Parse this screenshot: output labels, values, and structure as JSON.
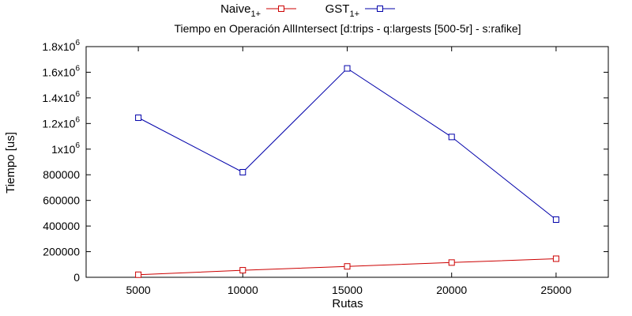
{
  "chart_data": {
    "type": "line",
    "title": "Tiempo en Operación AllIntersect [d:trips - q:largests [500-5r] - s:rafike]",
    "xlabel": "Rutas",
    "ylabel": "Tiempo [us]",
    "x": [
      5000,
      10000,
      15000,
      20000,
      25000
    ],
    "xticks": [
      5000,
      10000,
      15000,
      20000,
      25000
    ],
    "xtick_labels": [
      "5000",
      "10000",
      "15000",
      "20000",
      "25000"
    ],
    "xlim": [
      2500,
      27500
    ],
    "ylim": [
      0,
      1800000
    ],
    "yticks": [
      {
        "value": 0,
        "base": "0",
        "exp": ""
      },
      {
        "value": 200000,
        "base": "200000",
        "exp": ""
      },
      {
        "value": 400000,
        "base": "400000",
        "exp": ""
      },
      {
        "value": 600000,
        "base": "600000",
        "exp": ""
      },
      {
        "value": 800000,
        "base": "800000",
        "exp": ""
      },
      {
        "value": 1000000,
        "base": "1x10",
        "exp": "6"
      },
      {
        "value": 1200000,
        "base": "1.2x10",
        "exp": "6"
      },
      {
        "value": 1400000,
        "base": "1.4x10",
        "exp": "6"
      },
      {
        "value": 1600000,
        "base": "1.6x10",
        "exp": "6"
      },
      {
        "value": 1800000,
        "base": "1.8x10",
        "exp": "6"
      }
    ],
    "grid": false,
    "legend_position": "top-center",
    "series": [
      {
        "name": "Naive",
        "sub": "1+",
        "color": "#cc0000",
        "marker": "square-open",
        "values": [
          20000,
          55000,
          85000,
          115000,
          145000
        ]
      },
      {
        "name": "GST",
        "sub": "1+",
        "color": "#0000aa",
        "marker": "square-open",
        "values": [
          1245000,
          820000,
          1630000,
          1095000,
          450000
        ]
      }
    ]
  }
}
